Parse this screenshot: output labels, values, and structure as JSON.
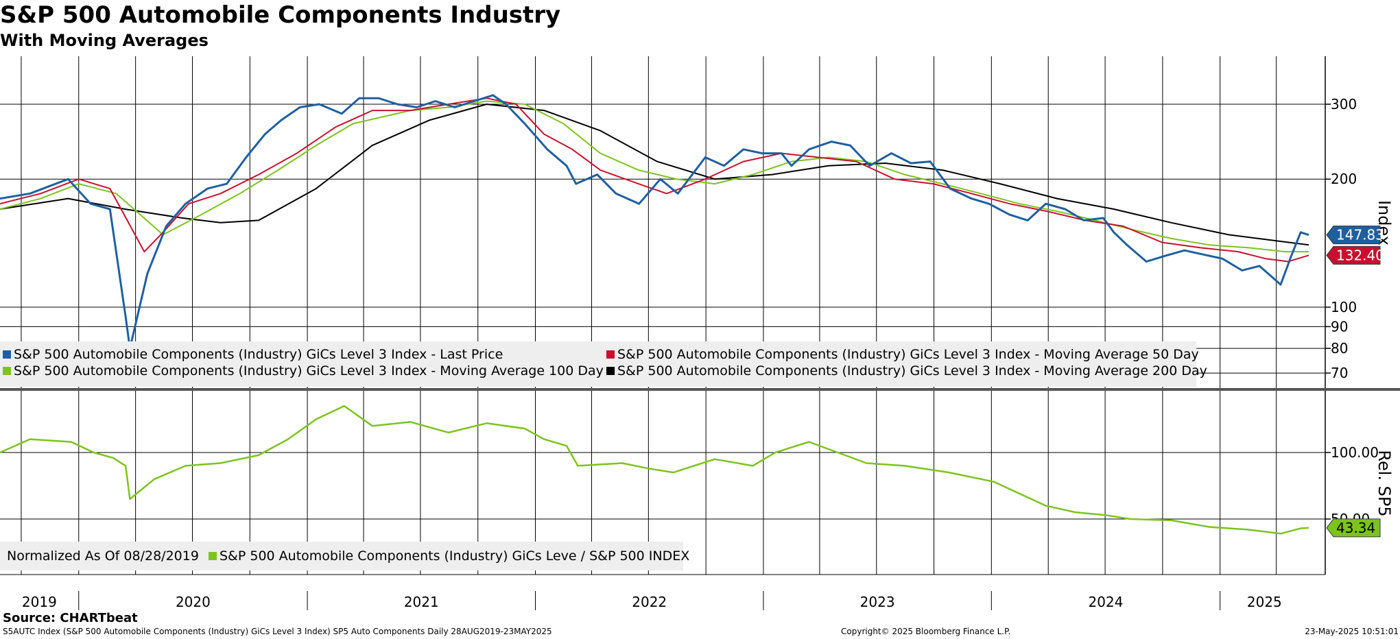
{
  "header": {
    "title": "S&P 500 Automobile Components Industry",
    "subtitle": "With Moving Averages"
  },
  "source": "Source: CHARTbeat",
  "footer": {
    "left": "S5AUTC Index (S&P 500 Automobile Components (Industry) GiCs Level 3 Index) SP5 Auto Components  Daily 28AUG2019-23MAY2025",
    "middle": "Copyright© 2025 Bloomberg Finance L.P.",
    "right": "23-May-2025 10:51:01"
  },
  "colors": {
    "last_price": "#1f5fa0",
    "ma50": "#c8102e",
    "ma100": "#7dc31e",
    "ma200": "#000000",
    "relative": "#7dc31e"
  },
  "chart_data": [
    {
      "type": "line",
      "scale": "log",
      "ylabel": "Index",
      "yticks": [
        70,
        80,
        90,
        100,
        200,
        300
      ],
      "ylim": [
        65,
        350
      ],
      "grid": true,
      "legend_placement": "bottom-left",
      "x_tick_labels": [
        "2019",
        "2020",
        "2021",
        "2022",
        "2023",
        "2024",
        "2025"
      ],
      "x_range": [
        "2019-08-28",
        "2025-05-23"
      ],
      "value_badges": [
        {
          "series": "last",
          "value": "147.83",
          "color": "#1f5fa0"
        },
        {
          "series": "ma50",
          "value": "132.40",
          "color": "#c8102e"
        }
      ],
      "series": [
        {
          "key": "last",
          "name": "S&P 500 Automobile Components (Industry) GiCs Level 3 Index - Last Price",
          "color": "#1f5fa0",
          "x": [
            "2019-08-28",
            "2019-10-15",
            "2019-12-15",
            "2020-01-20",
            "2020-02-20",
            "2020-03-16",
            "2020-03-23",
            "2020-04-20",
            "2020-05-20",
            "2020-06-20",
            "2020-07-25",
            "2020-08-25",
            "2020-09-25",
            "2020-10-25",
            "2020-11-20",
            "2020-12-20",
            "2021-01-20",
            "2021-02-25",
            "2021-03-25",
            "2021-04-25",
            "2021-05-25",
            "2021-06-25",
            "2021-07-25",
            "2021-08-25",
            "2021-09-25",
            "2021-10-25",
            "2021-11-15",
            "2021-12-15",
            "2022-01-20",
            "2022-02-20",
            "2022-03-07",
            "2022-04-10",
            "2022-05-10",
            "2022-06-16",
            "2022-07-20",
            "2022-08-17",
            "2022-09-30",
            "2022-10-30",
            "2022-11-30",
            "2022-12-30",
            "2023-01-30",
            "2023-02-15",
            "2023-03-15",
            "2023-04-20",
            "2023-05-20",
            "2023-06-20",
            "2023-07-25",
            "2023-08-25",
            "2023-09-25",
            "2023-10-27",
            "2023-11-30",
            "2023-12-28",
            "2024-01-30",
            "2024-02-28",
            "2024-03-28",
            "2024-04-28",
            "2024-05-28",
            "2024-06-28",
            "2024-07-15",
            "2024-08-05",
            "2024-09-05",
            "2024-10-05",
            "2024-11-05",
            "2024-12-05",
            "2025-01-05",
            "2025-02-05",
            "2025-03-05",
            "2025-04-08",
            "2025-04-25",
            "2025-05-10",
            "2025-05-23"
          ],
          "values": [
            180,
            185,
            200,
            175,
            170,
            95,
            80,
            120,
            155,
            175,
            190,
            195,
            225,
            255,
            275,
            295,
            300,
            285,
            310,
            310,
            300,
            295,
            305,
            295,
            305,
            315,
            300,
            270,
            235,
            215,
            195,
            205,
            185,
            175,
            200,
            185,
            225,
            215,
            235,
            230,
            230,
            215,
            235,
            245,
            240,
            215,
            230,
            218,
            220,
            190,
            180,
            175,
            165,
            160,
            175,
            170,
            160,
            162,
            150,
            140,
            128,
            132,
            136,
            133,
            130,
            122,
            125,
            113,
            132,
            150,
            147.83
          ]
        },
        {
          "key": "ma50",
          "name": "S&P 500 Automobile Components (Industry) GiCs Level 3 Index - Moving Average 50 Day",
          "color": "#c8102e",
          "x": [
            "2019-08-28",
            "2019-11-01",
            "2020-01-01",
            "2020-02-20",
            "2020-04-15",
            "2020-05-15",
            "2020-06-25",
            "2020-08-15",
            "2020-10-15",
            "2020-12-15",
            "2021-02-15",
            "2021-04-15",
            "2021-06-15",
            "2021-08-15",
            "2021-10-15",
            "2021-12-01",
            "2022-01-15",
            "2022-03-01",
            "2022-04-15",
            "2022-06-15",
            "2022-07-30",
            "2022-09-30",
            "2022-11-30",
            "2023-01-30",
            "2023-03-30",
            "2023-05-30",
            "2023-07-30",
            "2023-09-30",
            "2023-11-30",
            "2024-01-30",
            "2024-03-30",
            "2024-05-30",
            "2024-07-30",
            "2024-09-30",
            "2024-11-30",
            "2025-01-30",
            "2025-03-15",
            "2025-04-20",
            "2025-05-23"
          ],
          "values": [
            175,
            185,
            200,
            190,
            135,
            150,
            175,
            185,
            205,
            230,
            265,
            290,
            290,
            300,
            310,
            300,
            255,
            235,
            210,
            195,
            185,
            200,
            220,
            230,
            225,
            220,
            200,
            195,
            185,
            175,
            168,
            160,
            155,
            142,
            138,
            135,
            130,
            128,
            132.4
          ]
        },
        {
          "key": "ma100",
          "name": "S&P 500 Automobile Components (Industry) GiCs Level 3 Index - Moving Average 100 Day",
          "color": "#7dc31e",
          "x": [
            "2019-08-28",
            "2019-11-01",
            "2020-01-01",
            "2020-03-01",
            "2020-05-15",
            "2020-07-15",
            "2020-09-15",
            "2020-11-15",
            "2021-01-15",
            "2021-03-15",
            "2021-06-15",
            "2021-08-15",
            "2021-10-15",
            "2021-12-15",
            "2022-02-15",
            "2022-04-15",
            "2022-06-15",
            "2022-08-15",
            "2022-10-15",
            "2022-12-15",
            "2023-02-15",
            "2023-04-15",
            "2023-06-15",
            "2023-08-15",
            "2023-10-15",
            "2023-12-15",
            "2024-02-15",
            "2024-04-15",
            "2024-06-15",
            "2024-08-15",
            "2024-10-15",
            "2024-12-15",
            "2025-02-15",
            "2025-04-15",
            "2025-05-23"
          ],
          "values": [
            170,
            180,
            195,
            185,
            148,
            165,
            185,
            210,
            240,
            270,
            290,
            295,
            305,
            300,
            270,
            230,
            210,
            200,
            195,
            205,
            220,
            225,
            220,
            205,
            195,
            185,
            175,
            168,
            160,
            152,
            145,
            140,
            138,
            135,
            135
          ]
        },
        {
          "key": "ma200",
          "name": "S&P 500 Automobile Components (Industry) GiCs Level 3 Index - Moving Average 200 Day",
          "color": "#000000",
          "x": [
            "2019-08-28",
            "2019-12-15",
            "2020-03-15",
            "2020-06-15",
            "2020-08-15",
            "2020-10-15",
            "2021-01-15",
            "2021-04-15",
            "2021-07-15",
            "2021-10-15",
            "2022-01-15",
            "2022-04-15",
            "2022-07-15",
            "2022-10-15",
            "2023-01-15",
            "2023-04-15",
            "2023-07-15",
            "2023-10-15",
            "2024-01-15",
            "2024-04-15",
            "2024-07-15",
            "2024-10-15",
            "2025-01-15",
            "2025-05-23"
          ],
          "values": [
            170,
            180,
            170,
            162,
            158,
            160,
            190,
            240,
            275,
            300,
            290,
            260,
            220,
            200,
            205,
            215,
            218,
            210,
            195,
            180,
            170,
            158,
            148,
            140
          ]
        }
      ]
    },
    {
      "type": "line",
      "ylabel": "Rel. SP5",
      "yticks": [
        50.0,
        100.0
      ],
      "ylim": [
        20,
        150
      ],
      "grid": true,
      "legend_placement": "bottom-left",
      "normalized_note": "Normalized As Of 08/28/2019",
      "value_badges": [
        {
          "series": "relative",
          "value": "43.34",
          "color": "#7dc31e"
        }
      ],
      "series": [
        {
          "key": "relative",
          "name": "S&P 500 Automobile Components (Industry) GiCs Leve / S&P 500 INDEX",
          "color": "#7dc31e",
          "x": [
            "2019-08-28",
            "2019-10-15",
            "2019-12-20",
            "2020-01-25",
            "2020-02-25",
            "2020-03-16",
            "2020-03-23",
            "2020-05-01",
            "2020-06-20",
            "2020-08-15",
            "2020-10-15",
            "2020-12-01",
            "2021-01-15",
            "2021-03-01",
            "2021-04-15",
            "2021-06-15",
            "2021-08-15",
            "2021-10-15",
            "2021-12-15",
            "2022-01-15",
            "2022-02-20",
            "2022-03-10",
            "2022-05-20",
            "2022-07-01",
            "2022-08-10",
            "2022-10-15",
            "2022-12-15",
            "2023-01-20",
            "2023-03-15",
            "2023-06-15",
            "2023-08-15",
            "2023-10-25",
            "2024-01-05",
            "2024-03-28",
            "2024-05-15",
            "2024-07-01",
            "2024-08-10",
            "2024-10-15",
            "2024-12-15",
            "2025-02-15",
            "2025-04-08",
            "2025-05-10",
            "2025-05-23"
          ],
          "values": [
            100,
            110,
            108,
            100,
            96,
            90,
            65,
            80,
            90,
            92,
            98,
            110,
            125,
            135,
            120,
            123,
            115,
            122,
            118,
            110,
            105,
            90,
            92,
            88,
            85,
            95,
            90,
            100,
            108,
            92,
            90,
            85,
            78,
            60,
            55,
            53,
            50,
            49,
            44,
            42,
            39,
            43,
            43.34
          ]
        }
      ]
    }
  ]
}
